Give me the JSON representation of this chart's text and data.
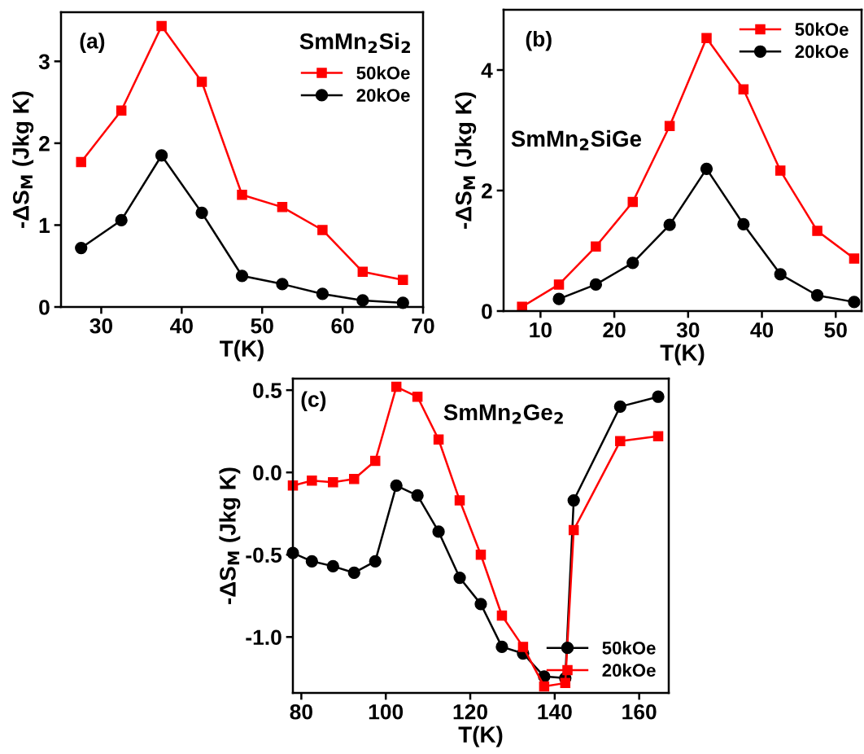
{
  "chart_data": [
    {
      "type": "line",
      "xlabel": "T(K)",
      "ylabel": "-ΔS$_{M}$ (Jkg K)",
      "annotations": [
        "(a)",
        "SmMn$_{2}$Si$_{2}$"
      ],
      "xlim": [
        25,
        70
      ],
      "xticks": [
        30,
        40,
        50,
        60,
        70
      ],
      "ylim": [
        0,
        3.6
      ],
      "yticks": [
        0,
        1,
        2,
        3
      ],
      "legend": "top right",
      "line_style": "solid",
      "x": [
        27.5,
        32.5,
        37.5,
        42.5,
        47.5,
        52.5,
        57.5,
        62.5,
        67.5
      ],
      "series": [
        {
          "name": "50kOe",
          "color": "#ff0000",
          "marker": "square",
          "values": [
            1.77,
            2.4,
            3.43,
            2.75,
            1.37,
            1.22,
            0.94,
            0.43,
            0.33
          ]
        },
        {
          "name": "20kOe",
          "color": "#000000",
          "marker": "circle",
          "values": [
            0.72,
            1.06,
            1.85,
            1.15,
            0.38,
            0.28,
            0.16,
            0.08,
            0.05
          ]
        }
      ]
    },
    {
      "type": "line",
      "xlabel": "T(K)",
      "ylabel": "-ΔS$_{M}$ (Jkg K)",
      "annotations": [
        "(b)",
        "SmMn$_{2}$SiGe"
      ],
      "xlim": [
        5,
        53.5
      ],
      "xticks": [
        10,
        20,
        30,
        40,
        50
      ],
      "ylim": [
        0,
        5
      ],
      "yticks": [
        0,
        2,
        4
      ],
      "legend": "top right",
      "line_style": "solid",
      "series": [
        {
          "name": "50kOe",
          "color": "#ff0000",
          "marker": "square",
          "x": [
            7.5,
            12.5,
            17.5,
            22.5,
            27.5,
            32.5,
            37.5,
            42.5,
            47.5,
            52.5
          ],
          "values": [
            0.07,
            0.44,
            1.07,
            1.81,
            3.07,
            4.53,
            3.68,
            2.33,
            1.33,
            0.87
          ]
        },
        {
          "name": "20kOe",
          "color": "#000000",
          "marker": "circle",
          "x": [
            12.5,
            17.5,
            22.5,
            27.5,
            32.5,
            37.5,
            42.5,
            47.5,
            52.5
          ],
          "values": [
            0.2,
            0.44,
            0.8,
            1.43,
            2.36,
            1.44,
            0.61,
            0.26,
            0.15
          ]
        }
      ]
    },
    {
      "type": "line",
      "xlabel": "T(K)",
      "ylabel": "-ΔS$_{M}$ (Jkg K)",
      "annotations": [
        "(c)",
        "SmMn$_{2}$Ge$_{2}$"
      ],
      "xlim": [
        78,
        167
      ],
      "xticks": [
        80,
        100,
        120,
        140,
        160
      ],
      "ylim": [
        -1.34,
        0.57
      ],
      "yticks": [
        {
          "value": -1.0,
          "label": "-1.0"
        },
        {
          "value": -0.5,
          "label": "-0.5"
        },
        {
          "value": 0.0,
          "label": "0.0"
        },
        {
          "value": 0.5,
          "label": "0.5"
        }
      ],
      "legend": "bottom right",
      "line_style": "solid",
      "x": [
        78,
        82.5,
        87.5,
        92.5,
        97.5,
        102.5,
        107.5,
        112.5,
        117.5,
        122.5,
        127.5,
        132.5,
        137.5,
        142.5,
        144.5,
        155.5,
        164.5
      ],
      "series": [
        {
          "name": "50kOe",
          "color": "#000000",
          "marker": "circle",
          "values": [
            -0.49,
            -0.54,
            -0.57,
            -0.61,
            -0.54,
            -0.08,
            -0.14,
            -0.36,
            -0.64,
            -0.8,
            -1.06,
            -1.1,
            -1.24,
            -1.25,
            -0.17,
            0.4,
            0.46
          ]
        },
        {
          "name": "20kOe",
          "color": "#ff0000",
          "marker": "square",
          "values": [
            -0.08,
            -0.05,
            -0.06,
            -0.04,
            0.07,
            0.52,
            0.46,
            0.2,
            -0.17,
            -0.5,
            -0.87,
            -1.06,
            -1.3,
            -1.28,
            -0.35,
            0.19,
            0.22
          ]
        }
      ]
    }
  ]
}
